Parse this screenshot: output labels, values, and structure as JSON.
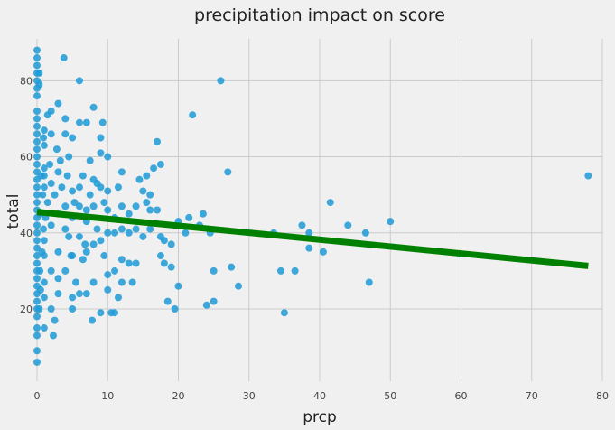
{
  "chart_data": {
    "type": "scatter",
    "title": "precipitation impact on score",
    "xlabel": "prcp",
    "ylabel": "total",
    "xlim": [
      0,
      80
    ],
    "ylim": [
      1,
      91
    ],
    "xticks": [
      0,
      10,
      20,
      30,
      40,
      50,
      60,
      70,
      80
    ],
    "yticks": [
      20,
      40,
      60,
      80
    ],
    "grid": true,
    "colors": {
      "points": "#1f9ad6",
      "fit_line": "#008000",
      "background": "#f0f0f0",
      "grid": "#cbcbcb"
    },
    "series": [
      {
        "kind": "points",
        "points": [
          [
            0,
            6
          ],
          [
            0,
            9
          ],
          [
            0,
            13
          ],
          [
            0,
            15
          ],
          [
            0,
            18
          ],
          [
            0,
            20
          ],
          [
            0,
            22
          ],
          [
            0,
            24
          ],
          [
            0,
            26
          ],
          [
            0,
            28
          ],
          [
            0,
            30
          ],
          [
            0,
            32
          ],
          [
            0,
            34
          ],
          [
            0,
            36
          ],
          [
            0,
            38
          ],
          [
            0,
            40
          ],
          [
            0,
            42
          ],
          [
            0,
            44
          ],
          [
            0,
            46
          ],
          [
            0,
            48
          ],
          [
            0,
            50
          ],
          [
            0,
            52
          ],
          [
            0,
            54
          ],
          [
            0,
            56
          ],
          [
            0,
            58
          ],
          [
            0,
            60
          ],
          [
            0,
            62
          ],
          [
            0,
            64
          ],
          [
            0,
            66
          ],
          [
            0,
            68
          ],
          [
            0,
            70
          ],
          [
            0,
            72
          ],
          [
            0,
            76
          ],
          [
            0,
            78
          ],
          [
            0,
            80
          ],
          [
            0,
            82
          ],
          [
            0,
            84
          ],
          [
            0,
            86
          ],
          [
            0,
            88
          ],
          [
            0.3,
            79
          ],
          [
            0.3,
            82
          ],
          [
            0.3,
            20
          ],
          [
            0.4,
            30
          ],
          [
            0.5,
            25
          ],
          [
            0.5,
            45
          ],
          [
            0.6,
            55
          ],
          [
            0.7,
            35
          ],
          [
            0.8,
            50
          ],
          [
            0.9,
            65
          ],
          [
            0.9,
            41
          ],
          [
            1,
            15
          ],
          [
            1,
            23
          ],
          [
            1,
            27
          ],
          [
            1,
            34
          ],
          [
            1,
            38
          ],
          [
            1,
            52
          ],
          [
            1,
            55
          ],
          [
            1,
            57
          ],
          [
            1,
            63
          ],
          [
            1,
            67
          ],
          [
            1.2,
            44
          ],
          [
            1.5,
            48
          ],
          [
            1.5,
            71
          ],
          [
            1.8,
            58
          ],
          [
            2,
            72
          ],
          [
            2,
            66
          ],
          [
            2,
            53
          ],
          [
            2,
            42
          ],
          [
            2,
            30
          ],
          [
            2,
            20
          ],
          [
            2.3,
            13
          ],
          [
            2.5,
            17
          ],
          [
            2.5,
            50
          ],
          [
            2.8,
            62
          ],
          [
            3,
            74
          ],
          [
            3,
            56
          ],
          [
            3,
            45
          ],
          [
            3,
            35
          ],
          [
            3,
            24
          ],
          [
            3,
            28
          ],
          [
            3.3,
            59
          ],
          [
            3.5,
            52
          ],
          [
            3.8,
            86
          ],
          [
            4,
            70
          ],
          [
            4,
            66
          ],
          [
            4,
            47
          ],
          [
            4,
            41
          ],
          [
            4,
            30
          ],
          [
            4.3,
            55
          ],
          [
            4.5,
            39
          ],
          [
            4.5,
            60
          ],
          [
            4.8,
            34
          ],
          [
            5,
            65
          ],
          [
            5,
            51
          ],
          [
            5,
            44
          ],
          [
            5,
            34
          ],
          [
            5,
            23
          ],
          [
            5,
            20
          ],
          [
            5.3,
            48
          ],
          [
            5.5,
            27
          ],
          [
            6,
            80
          ],
          [
            6,
            69
          ],
          [
            6,
            52
          ],
          [
            6,
            47
          ],
          [
            6,
            39
          ],
          [
            6,
            24
          ],
          [
            6.5,
            55
          ],
          [
            6.5,
            33
          ],
          [
            6.8,
            37
          ],
          [
            7,
            69
          ],
          [
            7,
            46
          ],
          [
            7,
            43
          ],
          [
            7,
            35
          ],
          [
            7,
            24
          ],
          [
            7.5,
            59
          ],
          [
            7.5,
            50
          ],
          [
            7.8,
            17
          ],
          [
            8,
            73
          ],
          [
            8,
            54
          ],
          [
            8,
            47
          ],
          [
            8,
            37
          ],
          [
            8,
            27
          ],
          [
            8.5,
            41
          ],
          [
            8.5,
            53
          ],
          [
            9,
            65
          ],
          [
            9,
            61
          ],
          [
            9,
            52
          ],
          [
            9,
            38
          ],
          [
            9,
            19
          ],
          [
            9.3,
            69
          ],
          [
            9.5,
            34
          ],
          [
            9.5,
            48
          ],
          [
            10,
            60
          ],
          [
            10,
            51
          ],
          [
            10,
            46
          ],
          [
            10,
            40
          ],
          [
            10,
            29
          ],
          [
            10,
            25
          ],
          [
            10.5,
            19
          ],
          [
            11,
            44
          ],
          [
            11,
            40
          ],
          [
            11,
            30
          ],
          [
            11,
            19
          ],
          [
            11.5,
            52
          ],
          [
            11.5,
            23
          ],
          [
            12,
            56
          ],
          [
            12,
            47
          ],
          [
            12,
            41
          ],
          [
            12,
            33
          ],
          [
            12,
            27
          ],
          [
            13,
            40
          ],
          [
            13,
            32
          ],
          [
            13,
            45
          ],
          [
            13.5,
            27
          ],
          [
            14,
            41
          ],
          [
            14,
            47
          ],
          [
            14,
            32
          ],
          [
            14.5,
            54
          ],
          [
            15,
            39
          ],
          [
            15,
            51
          ],
          [
            15.5,
            55
          ],
          [
            15.5,
            48
          ],
          [
            16,
            50
          ],
          [
            16,
            46
          ],
          [
            16,
            41
          ],
          [
            16.5,
            57
          ],
          [
            17,
            64
          ],
          [
            17,
            46
          ],
          [
            17.5,
            39
          ],
          [
            17.5,
            34
          ],
          [
            17.5,
            58
          ],
          [
            18,
            38
          ],
          [
            18,
            32
          ],
          [
            18.5,
            22
          ],
          [
            19,
            31
          ],
          [
            19,
            37
          ],
          [
            19.5,
            20
          ],
          [
            20,
            26
          ],
          [
            20,
            43
          ],
          [
            21,
            40
          ],
          [
            21.5,
            44
          ],
          [
            22,
            71
          ],
          [
            23,
            42
          ],
          [
            23.5,
            45
          ],
          [
            24,
            21
          ],
          [
            24.5,
            40
          ],
          [
            25,
            30
          ],
          [
            25,
            22
          ],
          [
            26,
            80
          ],
          [
            27,
            56
          ],
          [
            27.5,
            31
          ],
          [
            28.5,
            26
          ],
          [
            33.5,
            40
          ],
          [
            34.5,
            30
          ],
          [
            35,
            19
          ],
          [
            36.5,
            30
          ],
          [
            37.5,
            42
          ],
          [
            38.5,
            36
          ],
          [
            38.5,
            40
          ],
          [
            40.5,
            35
          ],
          [
            41.5,
            48
          ],
          [
            44,
            42
          ],
          [
            46.5,
            40
          ],
          [
            47,
            27
          ],
          [
            50,
            43
          ],
          [
            78,
            55
          ]
        ]
      },
      {
        "kind": "fit_line",
        "x": [
          0,
          78
        ],
        "y": [
          45.5,
          31.3
        ]
      }
    ]
  }
}
